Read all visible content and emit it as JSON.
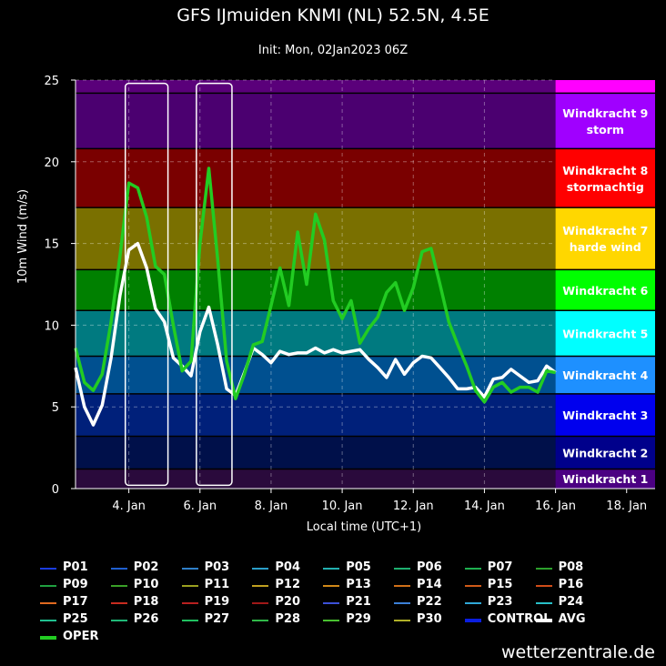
{
  "title": "GFS IJmuiden KNMI (NL) 52.5N, 4.5E",
  "subtitle": "Init: Mon, 02Jan2023 06Z",
  "credit": "wetterzentrale.de",
  "chart_data": {
    "type": "line",
    "title": "GFS IJmuiden KNMI (NL) 52.5N, 4.5E",
    "subtitle": "Init: Mon, 02Jan2023 06Z",
    "xlabel": "Local time (UTC+1)",
    "ylabel": "10m Wind (m/s)",
    "xlim": [
      2.5,
      18.8
    ],
    "ylim": [
      0,
      25
    ],
    "yticks": [
      0,
      5,
      10,
      15,
      20,
      25
    ],
    "xticks": [
      {
        "v": 4,
        "label": "4. Jan"
      },
      {
        "v": 6,
        "label": "6. Jan"
      },
      {
        "v": 8,
        "label": "8. Jan"
      },
      {
        "v": 10,
        "label": "10. Jan"
      },
      {
        "v": 12,
        "label": "12. Jan"
      },
      {
        "v": 14,
        "label": "14. Jan"
      },
      {
        "v": 16,
        "label": "16. Jan"
      },
      {
        "v": 18,
        "label": "18. Jan"
      }
    ],
    "bands": [
      {
        "from": 0,
        "to": 1.2,
        "bg": "#2a0a3c",
        "label_bg": "#4b0082",
        "label": "Windkracht 1"
      },
      {
        "from": 1.2,
        "to": 3.2,
        "bg": "#00104a",
        "label_bg": "#00008b",
        "label": "Windkracht 2"
      },
      {
        "from": 3.2,
        "to": 5.8,
        "bg": "#00207a",
        "label_bg": "#0000ee",
        "label": "Windkracht 3"
      },
      {
        "from": 5.8,
        "to": 8.1,
        "bg": "#005090",
        "label_bg": "#1e90ff",
        "label": "Windkracht 4"
      },
      {
        "from": 8.1,
        "to": 10.9,
        "bg": "#007a80",
        "label_bg": "#00ffff",
        "label": "Windkracht 5"
      },
      {
        "from": 10.9,
        "to": 13.4,
        "bg": "#008000",
        "label_bg": "#00ff00",
        "label": "Windkracht 6"
      },
      {
        "from": 13.4,
        "to": 17.2,
        "bg": "#7a7000",
        "label_bg": "#ffd700",
        "label": "Windkracht 7\nharde wind"
      },
      {
        "from": 17.2,
        "to": 20.8,
        "bg": "#7a0000",
        "label_bg": "#ff0000",
        "label": "Windkracht 8\nstormachtig"
      },
      {
        "from": 20.8,
        "to": 24.2,
        "bg": "#4b0070",
        "label_bg": "#a000ff",
        "label": "Windkracht 9\nstorm"
      },
      {
        "from": 24.2,
        "to": 25,
        "bg": "#5a007a",
        "label_bg": "#ff00ff",
        "label": ""
      }
    ],
    "highlight_boxes": [
      [
        3.9,
        5.1
      ],
      [
        5.9,
        6.9
      ]
    ],
    "series": [
      {
        "name": "AVG",
        "color": "#ffffff",
        "width": 3.5,
        "x": [
          2.5,
          2.75,
          3,
          3.25,
          3.5,
          3.75,
          4,
          4.25,
          4.5,
          4.75,
          5,
          5.25,
          5.5,
          5.75,
          6,
          6.25,
          6.5,
          6.75,
          7,
          7.25,
          7.5,
          7.75,
          8,
          8.25,
          8.5,
          8.75,
          9,
          9.25,
          9.5,
          9.75,
          10,
          10.25,
          10.5,
          10.75,
          11,
          11.25,
          11.5,
          11.75,
          12,
          12.25,
          12.5,
          12.75,
          13,
          13.25,
          13.5,
          13.75,
          14,
          14.25,
          14.5,
          14.75,
          15,
          15.25,
          15.5,
          15.75,
          16
        ],
        "y": [
          7.4,
          5,
          3.9,
          5.1,
          8,
          11.8,
          14.6,
          15,
          13.5,
          11,
          10.2,
          8,
          7.5,
          6.9,
          9.6,
          11.1,
          8.8,
          6.1,
          5.7,
          7.1,
          8.6,
          8.2,
          7.7,
          8.4,
          8.2,
          8.3,
          8.3,
          8.6,
          8.3,
          8.5,
          8.3,
          8.4,
          8.5,
          7.9,
          7.4,
          6.8,
          7.9,
          7,
          7.7,
          8.1,
          8,
          7.4,
          6.8,
          6.1,
          6.1,
          6.2,
          5.6,
          6.7,
          6.8,
          7.3,
          6.9,
          6.5,
          6.6,
          7.5,
          7.1
        ]
      },
      {
        "name": "OPER",
        "color": "#22cc22",
        "width": 3.5,
        "x": [
          2.5,
          2.75,
          3,
          3.25,
          3.5,
          3.75,
          4,
          4.25,
          4.5,
          4.75,
          5,
          5.25,
          5.5,
          5.75,
          6,
          6.25,
          6.5,
          6.75,
          7,
          7.25,
          7.5,
          7.75,
          8,
          8.25,
          8.5,
          8.75,
          9,
          9.25,
          9.5,
          9.75,
          10,
          10.25,
          10.5,
          10.75,
          11,
          11.25,
          11.5,
          11.75,
          12,
          12.25,
          12.5,
          12.75,
          13,
          13.25,
          13.5,
          13.75,
          14,
          14.25,
          14.5,
          14.75,
          15,
          15.25,
          15.5,
          15.75,
          16
        ],
        "y": [
          8.6,
          6.5,
          6,
          7,
          10.2,
          14.2,
          18.7,
          18.4,
          16.6,
          13.6,
          13.1,
          10,
          7.2,
          7.8,
          15,
          19.6,
          14,
          7.8,
          5.5,
          7,
          8.8,
          9,
          11.2,
          13.5,
          11.2,
          15.7,
          12.5,
          16.8,
          15.2,
          11.5,
          10.4,
          11.5,
          8.9,
          9.8,
          10.5,
          12,
          12.6,
          10.9,
          12.3,
          14.5,
          14.7,
          12.5,
          10.2,
          8.8,
          7.5,
          6,
          5.3,
          6.2,
          6.5,
          5.9,
          6.2,
          6.2,
          5.9,
          7.2,
          7.1
        ]
      }
    ],
    "legend": [
      {
        "name": "P01",
        "color": "#1a3ce0"
      },
      {
        "name": "P02",
        "color": "#1f5fcf"
      },
      {
        "name": "P03",
        "color": "#2f7fc8"
      },
      {
        "name": "P04",
        "color": "#2a9ec8"
      },
      {
        "name": "P05",
        "color": "#22b0b0"
      },
      {
        "name": "P06",
        "color": "#1eb070"
      },
      {
        "name": "P07",
        "color": "#1eb050"
      },
      {
        "name": "P08",
        "color": "#2ca02c"
      },
      {
        "name": "P09",
        "color": "#20a040"
      },
      {
        "name": "P10",
        "color": "#3aa028"
      },
      {
        "name": "P11",
        "color": "#9aa020"
      },
      {
        "name": "P12",
        "color": "#c0a020"
      },
      {
        "name": "P13",
        "color": "#d08818"
      },
      {
        "name": "P14",
        "color": "#d07018"
      },
      {
        "name": "P15",
        "color": "#d05a18"
      },
      {
        "name": "P16",
        "color": "#d04c18"
      },
      {
        "name": "P17",
        "color": "#e06a20"
      },
      {
        "name": "P18",
        "color": "#c82c20"
      },
      {
        "name": "P19",
        "color": "#b82020"
      },
      {
        "name": "P20",
        "color": "#a01818"
      },
      {
        "name": "P21",
        "color": "#3c50d8"
      },
      {
        "name": "P22",
        "color": "#3c80d8"
      },
      {
        "name": "P23",
        "color": "#30a8d8"
      },
      {
        "name": "P24",
        "color": "#28c0c8"
      },
      {
        "name": "P25",
        "color": "#20c090"
      },
      {
        "name": "P26",
        "color": "#20b878"
      },
      {
        "name": "P27",
        "color": "#20c060"
      },
      {
        "name": "P28",
        "color": "#30b848"
      },
      {
        "name": "P29",
        "color": "#48c030"
      },
      {
        "name": "P30",
        "color": "#b0b028"
      },
      {
        "name": "CONTROL",
        "color": "#0a1ee0"
      },
      {
        "name": "AVG",
        "color": "#ffffff"
      },
      {
        "name": "OPER",
        "color": "#22cc22"
      }
    ]
  }
}
